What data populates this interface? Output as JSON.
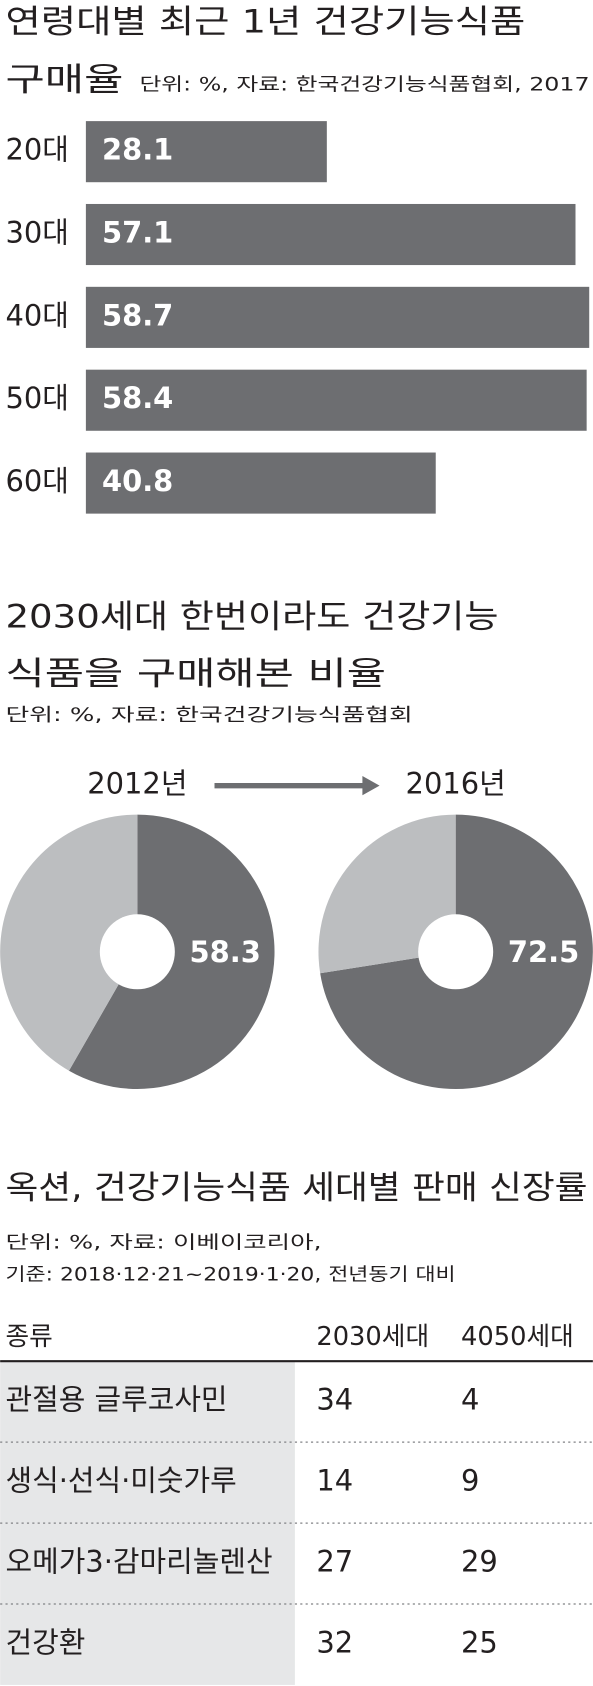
{
  "chart_data": [
    {
      "type": "bar",
      "title": [
        "연령대별 최근 1년 건강기능식품",
        "구매율"
      ],
      "subtitle": "단위: %, 자료: 한국건강기능식품협회, 2017",
      "categories": [
        "20대",
        "30대",
        "40대",
        "50대",
        "60대"
      ],
      "values": [
        28.1,
        57.1,
        58.7,
        58.4,
        40.8
      ],
      "color": "#6d6e71"
    },
    {
      "type": "pie",
      "title": [
        "2030세대 한번이라도 건강기능",
        "식품을 구매해본 비율"
      ],
      "subtitle": "단위: %, 자료: 한국건강기능식품협회",
      "colors": [
        "#6d6e71",
        "#bcbec0"
      ],
      "pies": [
        {
          "label": "2012년",
          "values": [
            58.3,
            41.7
          ]
        },
        {
          "label": "2016년",
          "values": [
            72.5,
            27.5
          ]
        }
      ]
    }
  ],
  "table": {
    "title": "옥션, 건강기능식품 세대별 판매 신장률",
    "notes": [
      "단위: %, 자료: 이베이코리아,",
      "기준: 2018·12·21~2019·1·20, 전년동기 대비"
    ],
    "columns": [
      "종류",
      "2030세대",
      "4050세대"
    ],
    "rows": [
      [
        "관절용 글루코사민",
        34,
        4
      ],
      [
        "생식·선식·미숫가루",
        14,
        9
      ],
      [
        "오메가3·감마리놀렌산",
        27,
        29
      ],
      [
        "건강환",
        32,
        25
      ]
    ]
  }
}
